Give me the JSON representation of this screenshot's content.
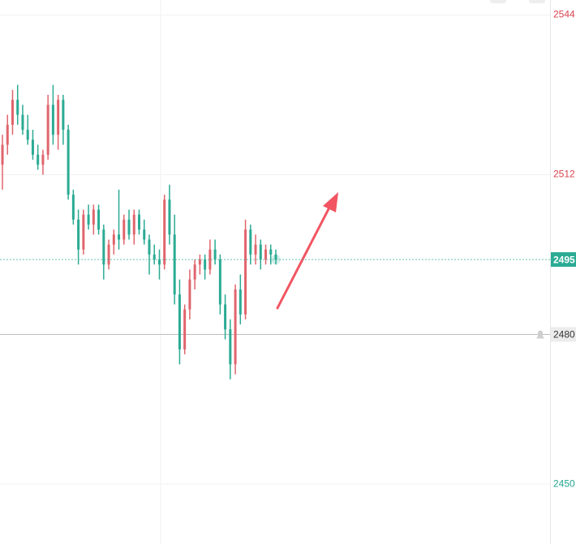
{
  "chart_data": {
    "type": "candlestick",
    "open": [
      2514,
      2518,
      2522,
      2527,
      2524,
      2521,
      2519,
      2516,
      2514,
      2516,
      2526,
      2520,
      2527,
      2521,
      2508,
      2503,
      2497,
      2504,
      2502,
      2505,
      2501,
      2494,
      2498,
      2500,
      2499,
      2503,
      2500,
      2504,
      2501,
      2499,
      2496,
      2495,
      2494,
      2507,
      2500,
      2488,
      2477,
      2485,
      2491,
      2494,
      2495,
      2493,
      2497,
      2495,
      2486,
      2481,
      2474,
      2489,
      2484,
      2501,
      2496,
      2498,
      2495,
      2497,
      2496
    ],
    "high": [
      2520,
      2524,
      2529,
      2530,
      2526,
      2524,
      2521,
      2518,
      2517,
      2528,
      2530,
      2528,
      2528,
      2522,
      2509,
      2505,
      2505,
      2506,
      2506,
      2506,
      2502,
      2499,
      2501,
      2509,
      2504,
      2505,
      2505,
      2505,
      2503,
      2500,
      2498,
      2497,
      2508,
      2510,
      2504,
      2491,
      2486,
      2493,
      2495,
      2496,
      2496,
      2499,
      2499,
      2496,
      2488,
      2483,
      2490,
      2492,
      2503,
      2502,
      2500,
      2499,
      2498,
      2498,
      2497
    ],
    "low": [
      2509,
      2516,
      2520,
      2522,
      2520,
      2518,
      2515,
      2513,
      2512,
      2515,
      2518,
      2517,
      2518,
      2507,
      2502,
      2494,
      2496,
      2501,
      2500,
      2500,
      2491,
      2493,
      2496,
      2497,
      2498,
      2499,
      2498,
      2500,
      2498,
      2492,
      2494,
      2491,
      2493,
      2498,
      2486,
      2474,
      2476,
      2483,
      2489,
      2492,
      2491,
      2492,
      2494,
      2484,
      2479,
      2471,
      2472,
      2482,
      2483,
      2494,
      2494,
      2493,
      2494,
      2494,
      2494
    ],
    "close": [
      2518,
      2522,
      2527,
      2524,
      2521,
      2519,
      2516,
      2514,
      2516,
      2526,
      2520,
      2527,
      2521,
      2508,
      2503,
      2497,
      2504,
      2502,
      2505,
      2501,
      2494,
      2498,
      2500,
      2499,
      2503,
      2500,
      2504,
      2501,
      2499,
      2496,
      2495,
      2494,
      2507,
      2500,
      2488,
      2477,
      2485,
      2491,
      2494,
      2495,
      2493,
      2497,
      2495,
      2486,
      2481,
      2474,
      2489,
      2484,
      2501,
      2496,
      2498,
      2495,
      2497,
      2496,
      2495
    ],
    "up_color": "#e0656d",
    "down_color": "#2bab94",
    "ylim": [
      2438,
      2547
    ],
    "yticks": [
      2544,
      2512,
      2450
    ],
    "ytick_colors": [
      "#d9444f",
      "#d9444f",
      "#22a58e"
    ],
    "current_price": 2495,
    "alert_price": 2480
  }
}
